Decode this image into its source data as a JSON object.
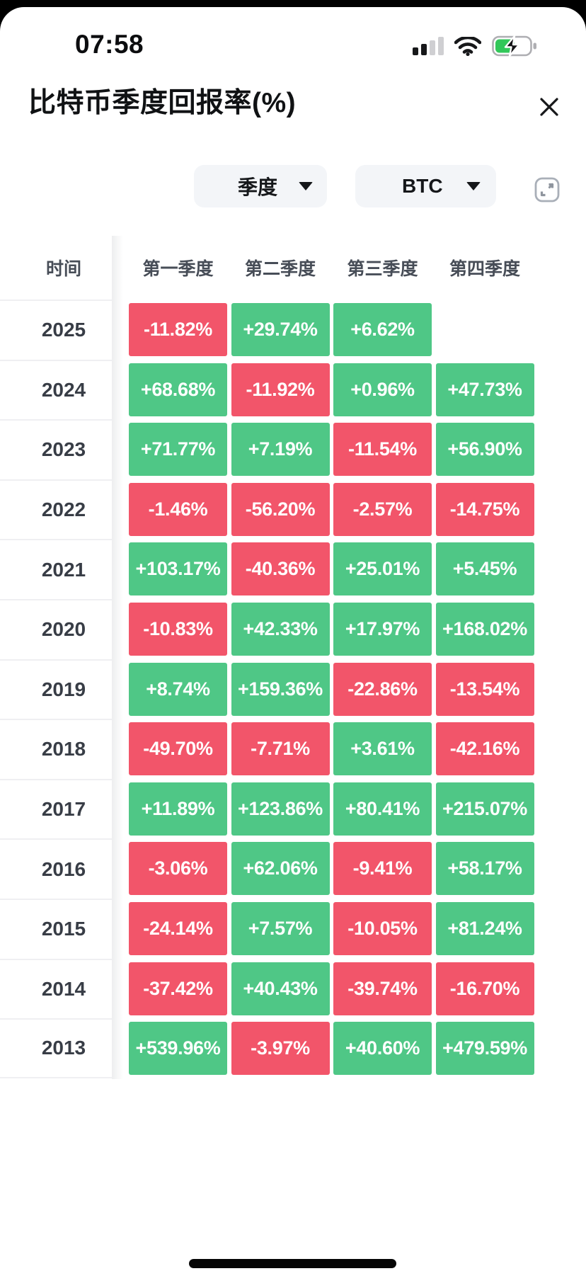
{
  "status_bar": {
    "time": "07:58"
  },
  "header": {
    "title": "比特币季度回报率(%)"
  },
  "controls": {
    "period_dropdown": {
      "selected": "季度"
    },
    "asset_dropdown": {
      "selected": "BTC"
    }
  },
  "table": {
    "time_header": "时间",
    "quarter_headers": [
      "第一季度",
      "第二季度",
      "第三季度",
      "第四季度"
    ],
    "rows": [
      {
        "year": "2025",
        "values": [
          "-11.82%",
          "+29.74%",
          "+6.62%",
          ""
        ]
      },
      {
        "year": "2024",
        "values": [
          "+68.68%",
          "-11.92%",
          "+0.96%",
          "+47.73%"
        ]
      },
      {
        "year": "2023",
        "values": [
          "+71.77%",
          "+7.19%",
          "-11.54%",
          "+56.90%"
        ]
      },
      {
        "year": "2022",
        "values": [
          "-1.46%",
          "-56.20%",
          "-2.57%",
          "-14.75%"
        ]
      },
      {
        "year": "2021",
        "values": [
          "+103.17%",
          "-40.36%",
          "+25.01%",
          "+5.45%"
        ]
      },
      {
        "year": "2020",
        "values": [
          "-10.83%",
          "+42.33%",
          "+17.97%",
          "+168.02%"
        ]
      },
      {
        "year": "2019",
        "values": [
          "+8.74%",
          "+159.36%",
          "-22.86%",
          "-13.54%"
        ]
      },
      {
        "year": "2018",
        "values": [
          "-49.70%",
          "-7.71%",
          "+3.61%",
          "-42.16%"
        ]
      },
      {
        "year": "2017",
        "values": [
          "+11.89%",
          "+123.86%",
          "+80.41%",
          "+215.07%"
        ]
      },
      {
        "year": "2016",
        "values": [
          "-3.06%",
          "+62.06%",
          "-9.41%",
          "+58.17%"
        ]
      },
      {
        "year": "2015",
        "values": [
          "-24.14%",
          "+7.57%",
          "-10.05%",
          "+81.24%"
        ]
      },
      {
        "year": "2014",
        "values": [
          "-37.42%",
          "+40.43%",
          "-39.74%",
          "-16.70%"
        ]
      },
      {
        "year": "2013",
        "values": [
          "+539.96%",
          "-3.97%",
          "+40.60%",
          "+479.59%"
        ]
      }
    ]
  },
  "colors": {
    "positive": "#4fc786",
    "negative": "#f2556a",
    "battery": "#32c759"
  },
  "chart_data": {
    "type": "heatmap",
    "title": "比特币季度回报率(%)",
    "x_categories": [
      "第一季度",
      "第二季度",
      "第三季度",
      "第四季度"
    ],
    "y_categories": [
      "2025",
      "2024",
      "2023",
      "2022",
      "2021",
      "2020",
      "2019",
      "2018",
      "2017",
      "2016",
      "2015",
      "2014",
      "2013"
    ],
    "values": [
      [
        -11.82,
        29.74,
        6.62,
        null
      ],
      [
        68.68,
        -11.92,
        0.96,
        47.73
      ],
      [
        71.77,
        7.19,
        -11.54,
        56.9
      ],
      [
        -1.46,
        -56.2,
        -2.57,
        -14.75
      ],
      [
        103.17,
        -40.36,
        25.01,
        5.45
      ],
      [
        -10.83,
        42.33,
        17.97,
        168.02
      ],
      [
        8.74,
        159.36,
        -22.86,
        -13.54
      ],
      [
        -49.7,
        -7.71,
        3.61,
        -42.16
      ],
      [
        11.89,
        123.86,
        80.41,
        215.07
      ],
      [
        -3.06,
        62.06,
        -9.41,
        58.17
      ],
      [
        -24.14,
        7.57,
        -10.05,
        81.24
      ],
      [
        -37.42,
        40.43,
        -39.74,
        -16.7
      ],
      [
        539.96,
        -3.97,
        40.6,
        479.59
      ]
    ],
    "legend": "green = positive return, red = negative return"
  }
}
